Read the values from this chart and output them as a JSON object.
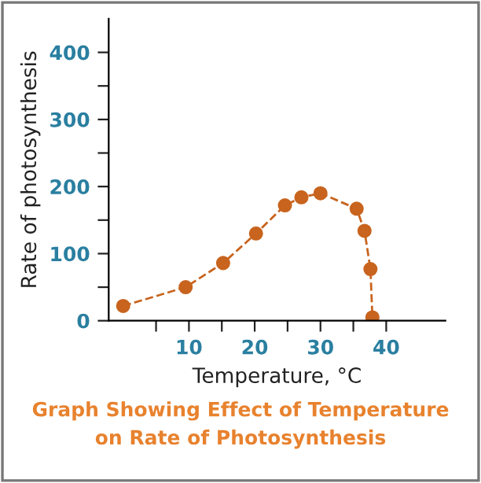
{
  "chart_data": {
    "type": "line",
    "xlabel": "Temperature, °C",
    "ylabel": "Rate of photosynthesis",
    "annotations": [
      "Graph Showing Effect of Temperature\non Rate of Photosynthesis"
    ],
    "x": [
      0,
      9.5,
      15.2,
      20.2,
      24.6,
      27.1,
      30,
      35.5,
      36.7,
      37.6,
      37.9
    ],
    "series": [
      {
        "color": "#c8641e",
        "values": [
          22,
          50,
          86,
          130,
          172,
          184,
          190,
          167,
          134,
          77,
          5
        ]
      }
    ],
    "xlim": [
      -2.2,
      49
    ],
    "xticks": [
      {
        "value": 5,
        "label": null
      },
      10,
      {
        "value": 15,
        "label": null
      },
      20,
      {
        "value": 25,
        "label": null
      },
      30,
      {
        "value": 35,
        "label": null
      },
      40
    ],
    "ylim": [
      0,
      450
    ],
    "yticks": [
      0,
      {
        "value": 50,
        "label": null
      },
      100,
      {
        "value": 150,
        "label": null
      },
      200,
      {
        "value": 250,
        "label": null
      },
      300,
      {
        "value": 350,
        "label": null
      },
      400
    ],
    "marker": "circle",
    "line_style": "dashed",
    "grid": false,
    "legend": false
  }
}
